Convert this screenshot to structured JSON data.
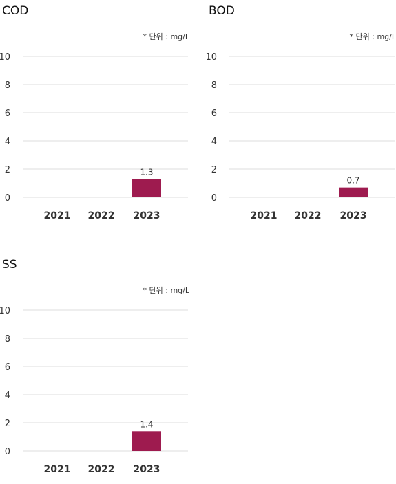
{
  "chart_data": [
    {
      "type": "bar",
      "title": "COD",
      "unit_note": "* 단위 : mg/L",
      "categories": [
        "2021",
        "2022",
        "2023"
      ],
      "values": [
        null,
        null,
        1.3
      ],
      "data_labels": [
        "",
        "",
        "1.3"
      ],
      "yticks": [
        0,
        2,
        4,
        6,
        8,
        10
      ],
      "ylim": [
        0,
        10
      ],
      "grid": true,
      "color": "#9e1b4f"
    },
    {
      "type": "bar",
      "title": "BOD",
      "unit_note": "* 단위 : mg/L",
      "categories": [
        "2021",
        "2022",
        "2023"
      ],
      "values": [
        null,
        null,
        0.7
      ],
      "data_labels": [
        "",
        "",
        "0.7"
      ],
      "yticks": [
        0,
        2,
        4,
        6,
        8,
        10
      ],
      "ylim": [
        0,
        10
      ],
      "grid": true,
      "color": "#9e1b4f"
    },
    {
      "type": "bar",
      "title": "SS",
      "unit_note": "* 단위 : mg/L",
      "categories": [
        "2021",
        "2022",
        "2023"
      ],
      "values": [
        null,
        null,
        1.4
      ],
      "data_labels": [
        "",
        "",
        "1.4"
      ],
      "yticks": [
        0,
        2,
        4,
        6,
        8,
        10
      ],
      "ylim": [
        0,
        10
      ],
      "grid": true,
      "color": "#9e1b4f"
    }
  ]
}
